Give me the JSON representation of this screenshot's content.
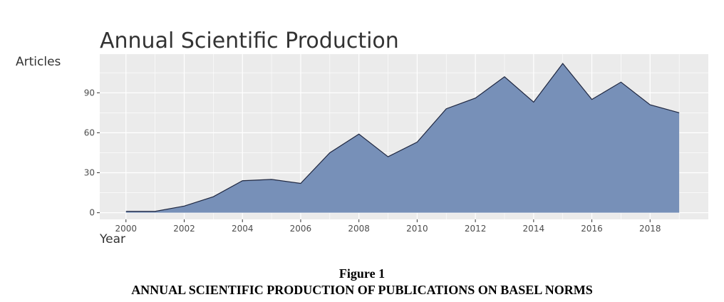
{
  "chart_data": {
    "type": "area",
    "title": "Annual Scientific Production",
    "xlabel": "Year",
    "ylabel": "Articles",
    "x": [
      2000,
      2001,
      2002,
      2003,
      2004,
      2005,
      2006,
      2007,
      2008,
      2009,
      2010,
      2011,
      2012,
      2013,
      2014,
      2015,
      2016,
      2017,
      2018,
      2019
    ],
    "values": [
      1,
      1,
      5,
      12,
      24,
      25,
      22,
      45,
      59,
      42,
      53,
      78,
      86,
      102,
      83,
      112,
      85,
      98,
      81,
      75
    ],
    "xlim": [
      1999.1,
      2020
    ],
    "ylim": [
      -5,
      119
    ],
    "x_ticks": [
      2000,
      2002,
      2004,
      2006,
      2008,
      2010,
      2012,
      2014,
      2016,
      2018
    ],
    "y_ticks": [
      0,
      30,
      60,
      90
    ],
    "grid": true,
    "colors": {
      "fill": "#7790b8",
      "line": "#1f2740",
      "panel": "#ebebeb",
      "grid": "#ffffff"
    }
  },
  "caption": {
    "label": "Figure 1",
    "text": "ANNUAL SCIENTIFIC PRODUCTION OF PUBLICATIONS ON BASEL NORMS"
  }
}
